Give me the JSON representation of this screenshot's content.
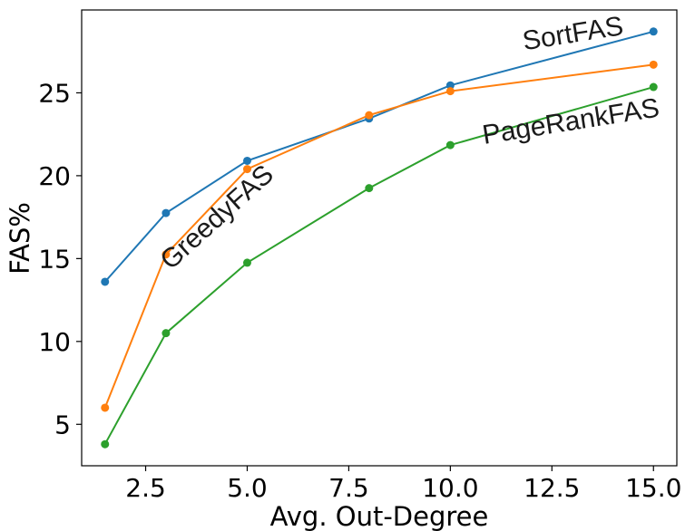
{
  "chart_data": {
    "type": "line",
    "title": "",
    "xlabel": "Avg. Out-Degree",
    "ylabel": "FAS%",
    "xlim": [
      0.925,
      15.575
    ],
    "ylim": [
      2.5,
      30.0
    ],
    "xticks": [
      2.5,
      5.0,
      7.5,
      10.0,
      12.5,
      15.0
    ],
    "xtick_labels": [
      "2.5",
      "5.0",
      "7.5",
      "10.0",
      "12.5",
      "15.0"
    ],
    "yticks": [
      5,
      10,
      15,
      20,
      25
    ],
    "ytick_labels": [
      "5",
      "10",
      "15",
      "20",
      "25"
    ],
    "grid": false,
    "legend": "none (inline labels)",
    "series": [
      {
        "name": "SortFAS",
        "color": "#1f77b4",
        "x": [
          1.5,
          3.0,
          5.0,
          8.0,
          10.0,
          15.0
        ],
        "y": [
          13.6,
          17.75,
          20.9,
          23.45,
          25.45,
          28.7
        ]
      },
      {
        "name": "GreedyFAS",
        "color": "#ff7f0e",
        "x": [
          1.5,
          3.0,
          5.0,
          8.0,
          10.0,
          15.0
        ],
        "y": [
          6.0,
          15.25,
          20.4,
          23.65,
          25.1,
          26.7
        ]
      },
      {
        "name": "PageRankFAS",
        "color": "#2ca02c",
        "x": [
          1.5,
          3.0,
          5.0,
          8.0,
          10.0,
          15.0
        ],
        "y": [
          3.8,
          10.5,
          14.75,
          19.25,
          21.85,
          25.35
        ]
      }
    ],
    "annotations": [
      {
        "text": "SortFAS",
        "series": 0,
        "x": 13.05,
        "y": 28.05,
        "rotate": -9
      },
      {
        "text": "GreedyFAS",
        "series": 1,
        "x": 4.4,
        "y": 17.1,
        "rotate": -42
      },
      {
        "text": "PageRankFAS",
        "series": 2,
        "x": 13.0,
        "y": 22.75,
        "rotate": -9
      }
    ]
  }
}
